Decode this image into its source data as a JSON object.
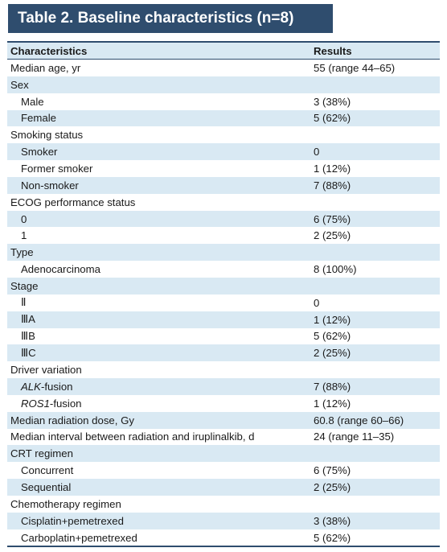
{
  "title": "Table 2. Baseline characteristics (n=8)",
  "columns": [
    "Characteristics",
    "Results"
  ],
  "rows": [
    {
      "label": "Median age, yr",
      "value": "55 (range 44–65)",
      "indent": false
    },
    {
      "label": "Sex",
      "value": "",
      "indent": false
    },
    {
      "label": "Male",
      "value": "3 (38%)",
      "indent": true
    },
    {
      "label": "Female",
      "value": "5 (62%)",
      "indent": true
    },
    {
      "label": "Smoking status",
      "value": "",
      "indent": false
    },
    {
      "label": "Smoker",
      "value": "0",
      "indent": true
    },
    {
      "label": "Former smoker",
      "value": "1 (12%)",
      "indent": true
    },
    {
      "label": "Non-smoker",
      "value": "7 (88%)",
      "indent": true
    },
    {
      "label": "ECOG performance status",
      "value": "",
      "indent": false
    },
    {
      "label": "0",
      "value": "6 (75%)",
      "indent": true
    },
    {
      "label": "1",
      "value": "2 (25%)",
      "indent": true
    },
    {
      "label": "Type",
      "value": "",
      "indent": false
    },
    {
      "label": "Adenocarcinoma",
      "value": "8 (100%)",
      "indent": true
    },
    {
      "label": "Stage",
      "value": "",
      "indent": false
    },
    {
      "label": "Ⅱ",
      "value": "0",
      "indent": true
    },
    {
      "label": "ⅢA",
      "value": "1 (12%)",
      "indent": true
    },
    {
      "label": "ⅢB",
      "value": "5 (62%)",
      "indent": true
    },
    {
      "label": "ⅢC",
      "value": "2 (25%)",
      "indent": true
    },
    {
      "label": "Driver variation",
      "value": "",
      "indent": false
    },
    {
      "label_italic": "ALK",
      "label_rest": "-fusion",
      "value": "7 (88%)",
      "indent": true
    },
    {
      "label_italic": "ROS1",
      "label_rest": "-fusion",
      "value": "1 (12%)",
      "indent": true
    },
    {
      "label": "Median radiation dose, Gy",
      "value": "60.8 (range 60–66)",
      "indent": false
    },
    {
      "label": "Median interval between radiation and iruplinalkib, d",
      "value": "24 (range 11–35)",
      "indent": false
    },
    {
      "label": "CRT regimen",
      "value": "",
      "indent": false
    },
    {
      "label": "Concurrent",
      "value": "6 (75%)",
      "indent": true
    },
    {
      "label": "Sequential",
      "value": "2 (25%)",
      "indent": true
    },
    {
      "label": "Chemotherapy regimen",
      "value": "",
      "indent": false
    },
    {
      "label": "Cisplatin+pemetrexed",
      "value": "3 (38%)",
      "indent": true
    },
    {
      "label": "Carboplatin+pemetrexed",
      "value": "5 (62%)",
      "indent": true
    }
  ]
}
